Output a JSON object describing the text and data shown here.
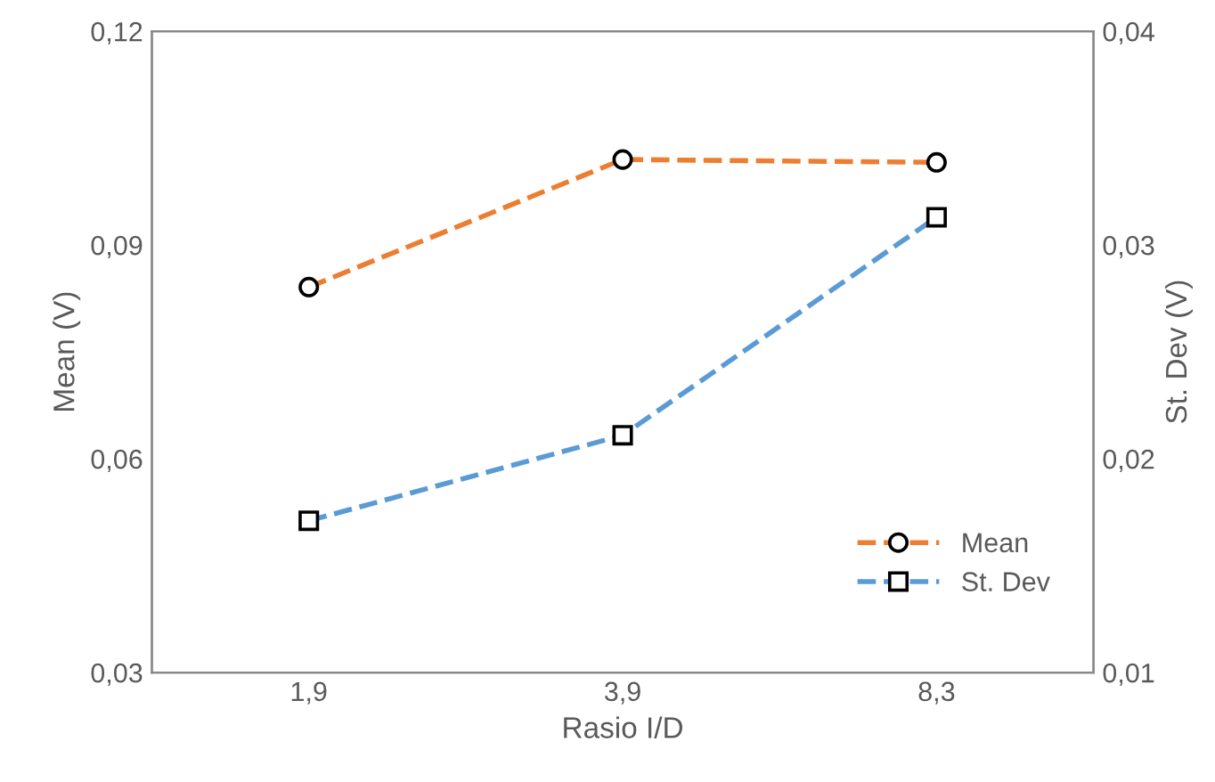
{
  "chart_data": {
    "type": "line",
    "xlabel": "Rasio I/D",
    "ylabel": "Mean (V)",
    "y2label": "St. Dev (V)",
    "categories": [
      "1,9",
      "3,9",
      "8,3"
    ],
    "series": [
      {
        "name": "Mean",
        "color": "#ed7d31",
        "values": [
          0.0841,
          0.102,
          0.1016
        ],
        "marker": "circle"
      },
      {
        "name": "St. Dev",
        "color": "#5b9bd5",
        "values": [
          0.0171,
          0.0211,
          0.0313
        ],
        "marker": "square",
        "axis": "y2"
      }
    ],
    "ylim": [
      0.03,
      0.12
    ],
    "yticks": [
      {
        "value": 0.03,
        "label": "0,03"
      },
      {
        "value": 0.06,
        "label": "0,06"
      },
      {
        "value": 0.09,
        "label": "0,09"
      },
      {
        "value": 0.12,
        "label": "0,12"
      }
    ],
    "y2lim": [
      0.01,
      0.04
    ],
    "y2ticks": [
      {
        "value": 0.01,
        "label": "0,01"
      },
      {
        "value": 0.02,
        "label": "0,02"
      },
      {
        "value": 0.03,
        "label": "0,03"
      },
      {
        "value": 0.04,
        "label": "0,04"
      }
    ],
    "grid": false,
    "legend": "bottom right",
    "line_style": "dashed"
  }
}
